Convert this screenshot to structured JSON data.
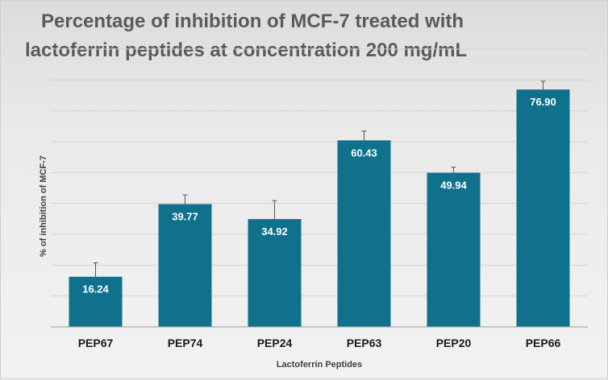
{
  "chart_data": {
    "type": "bar",
    "title": [
      "Percentage of inhibition of MCF-7 treated with",
      "lactoferrin  peptides  at concentration  200 mg/mL"
    ],
    "xlabel": "Lactoferrin Peptides",
    "ylabel": "% of inhibition of MCF-7",
    "categories": [
      "PEP67",
      "PEP74",
      "PEP24",
      "PEP63",
      "PEP20",
      "PEP66"
    ],
    "values": [
      16.24,
      39.77,
      34.92,
      60.43,
      49.94,
      76.9
    ],
    "value_labels": [
      "16.24",
      "39.77",
      "34.92",
      "60.43",
      "49.94",
      "76.90"
    ],
    "error_bars": [
      4.5,
      3.0,
      6.0,
      3.0,
      1.8,
      2.7
    ],
    "ylim": [
      0,
      90
    ],
    "grid": true,
    "bar_color": "#0f718b"
  }
}
